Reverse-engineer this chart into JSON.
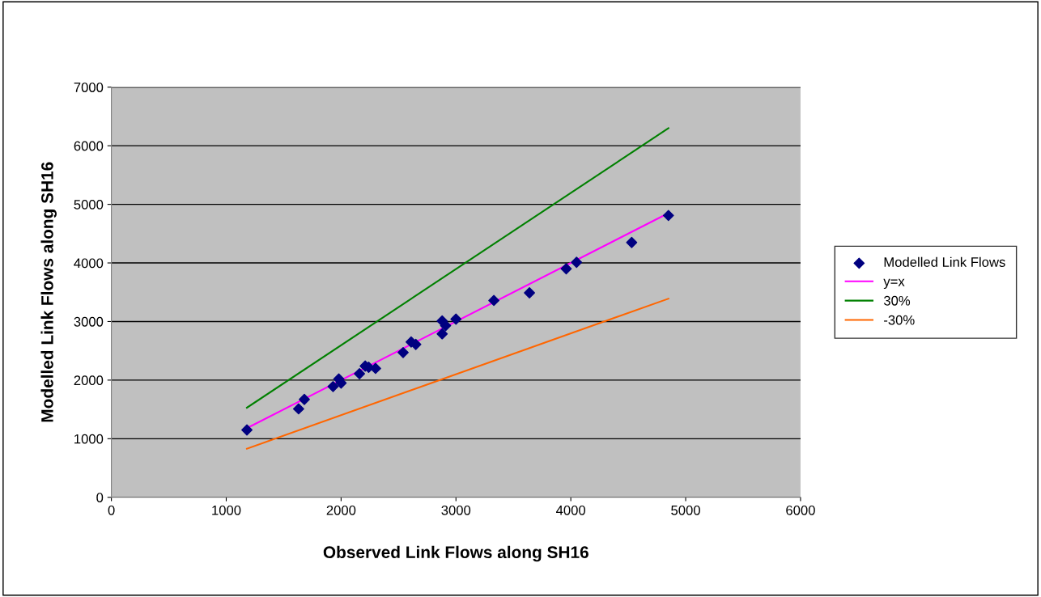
{
  "chart_data": {
    "type": "line",
    "xlabel": "Observed Link Flows along SH16",
    "ylabel": "Modelled Link Flows along SH16",
    "xlim": [
      0,
      6000
    ],
    "xticks": [
      0,
      1000,
      2000,
      3000,
      4000,
      5000,
      6000
    ],
    "ylim": [
      0,
      7000
    ],
    "yticks": [
      0,
      1000,
      2000,
      3000,
      4000,
      5000,
      6000,
      7000
    ],
    "grid": "y",
    "legend": "right",
    "series": [
      {
        "name": "Modelled Link Flows",
        "type": "scatter",
        "marker": "diamond",
        "color": "#000080",
        "x": [
          1180,
          1630,
          1680,
          1930,
          1980,
          2000,
          2160,
          2210,
          2240,
          2300,
          2540,
          2610,
          2650,
          2880,
          2880,
          2910,
          3000,
          3330,
          3640,
          3960,
          4050,
          4530,
          4850
        ],
        "values": [
          1150,
          1510,
          1670,
          1890,
          2020,
          1950,
          2110,
          2240,
          2220,
          2200,
          2470,
          2650,
          2610,
          2790,
          3010,
          2930,
          3040,
          3360,
          3490,
          3900,
          4010,
          4350,
          4810
        ]
      },
      {
        "name": "y=x",
        "marker": "none",
        "color": "#ff00ff",
        "x": [
          1180,
          4850
        ],
        "values": [
          1180,
          4850
        ]
      },
      {
        "name": "30%",
        "marker": "none",
        "color": "#008000",
        "x": [
          1180,
          4850
        ],
        "values": [
          1530,
          6300
        ]
      },
      {
        "name": "-30%",
        "marker": "none",
        "color": "#ff6600",
        "x": [
          1180,
          4850
        ],
        "values": [
          830,
          3390
        ]
      }
    ]
  }
}
